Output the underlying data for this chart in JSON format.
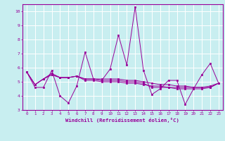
{
  "xlabel": "Windchill (Refroidissement éolien,°C)",
  "ylabel": "",
  "background_color": "#c8eef0",
  "line_color": "#990099",
  "grid_color": "#ffffff",
  "xlim": [
    -0.5,
    23.5
  ],
  "ylim": [
    3,
    10.5
  ],
  "yticks": [
    3,
    4,
    5,
    6,
    7,
    8,
    9,
    10
  ],
  "xticks": [
    0,
    1,
    2,
    3,
    4,
    5,
    6,
    7,
    8,
    9,
    10,
    11,
    12,
    13,
    14,
    15,
    16,
    17,
    18,
    19,
    20,
    21,
    22,
    23
  ],
  "series": [
    [
      5.7,
      4.6,
      4.6,
      5.8,
      4.0,
      3.5,
      4.7,
      7.1,
      5.2,
      5.1,
      5.9,
      8.3,
      6.2,
      10.3,
      5.8,
      4.1,
      4.5,
      5.1,
      5.1,
      3.4,
      4.5,
      5.5,
      6.3,
      4.9
    ],
    [
      5.7,
      4.8,
      5.2,
      5.6,
      5.3,
      5.3,
      5.4,
      5.1,
      5.1,
      5.0,
      5.0,
      5.0,
      4.9,
      4.9,
      4.8,
      4.7,
      4.7,
      4.6,
      4.6,
      4.6,
      4.6,
      4.6,
      4.6,
      4.9
    ],
    [
      5.7,
      4.8,
      5.2,
      5.5,
      5.3,
      5.3,
      5.4,
      5.2,
      5.2,
      5.2,
      5.2,
      5.2,
      5.1,
      5.1,
      5.0,
      4.9,
      4.8,
      4.8,
      4.7,
      4.7,
      4.6,
      4.6,
      4.7,
      4.9
    ],
    [
      5.7,
      4.8,
      5.2,
      5.5,
      5.3,
      5.3,
      5.4,
      5.2,
      5.2,
      5.1,
      5.1,
      5.1,
      5.0,
      5.0,
      4.9,
      4.6,
      4.6,
      4.6,
      4.5,
      4.5,
      4.5,
      4.5,
      4.6,
      4.9
    ]
  ],
  "figsize": [
    3.2,
    2.0
  ],
  "dpi": 100
}
